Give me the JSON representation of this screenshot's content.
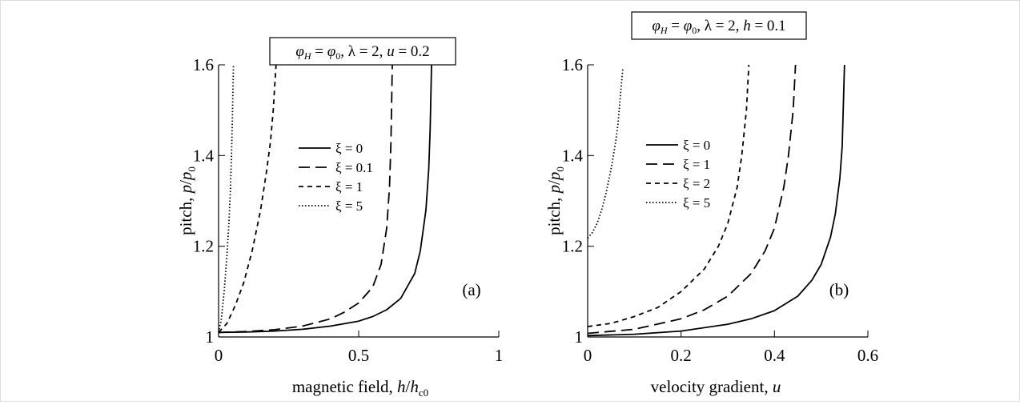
{
  "chart_data": [
    {
      "type": "line",
      "panel_label": "(a)",
      "title_parts": {
        "phi": "φ",
        "phi_sub_h": "H",
        "eq1": " = ",
        "phi0": "φ",
        "phi0_sub": "0",
        "rest1": ", λ = 2, ",
        "var": "u",
        "rest2": " = 0.2"
      },
      "xlabel_parts": {
        "pre": "magnetic field, ",
        "var": "h",
        "slash": "/",
        "var2": "h",
        "sub": "c0"
      },
      "ylabel_parts": {
        "pre": "pitch, ",
        "var": "p",
        "slash": "/",
        "var2": "p",
        "sub": "0"
      },
      "xlim": [
        0,
        1
      ],
      "ylim": [
        1,
        1.6
      ],
      "xticks": [
        {
          "v": 0,
          "label": "0"
        },
        {
          "v": 0.5,
          "label": "0.5"
        },
        {
          "v": 1,
          "label": "1"
        }
      ],
      "yticks": [
        {
          "v": 1,
          "label": "1"
        },
        {
          "v": 1.2,
          "label": "1.2"
        },
        {
          "v": 1.4,
          "label": "1.4"
        },
        {
          "v": 1.6,
          "label": "1.6"
        }
      ],
      "legend_position": "center",
      "series": [
        {
          "name": "ξ = 0",
          "style": "solid",
          "x": [
            0,
            0.1,
            0.2,
            0.3,
            0.4,
            0.5,
            0.55,
            0.6,
            0.65,
            0.7,
            0.72,
            0.74,
            0.75,
            0.755,
            0.76
          ],
          "y": [
            1.01,
            1.011,
            1.013,
            1.017,
            1.024,
            1.035,
            1.045,
            1.06,
            1.085,
            1.14,
            1.19,
            1.28,
            1.37,
            1.46,
            1.6
          ]
        },
        {
          "name": "ξ = 0.1",
          "style": "dash",
          "x": [
            0,
            0.1,
            0.2,
            0.3,
            0.4,
            0.45,
            0.5,
            0.55,
            0.58,
            0.6,
            0.61,
            0.615,
            0.62
          ],
          "y": [
            1.01,
            1.012,
            1.016,
            1.024,
            1.04,
            1.055,
            1.075,
            1.11,
            1.16,
            1.24,
            1.33,
            1.43,
            1.6
          ]
        },
        {
          "name": "ξ = 1",
          "style": "shortdash",
          "x": [
            0,
            0.03,
            0.06,
            0.09,
            0.12,
            0.15,
            0.17,
            0.185,
            0.195,
            0.2,
            0.205
          ],
          "y": [
            1.01,
            1.03,
            1.07,
            1.12,
            1.19,
            1.28,
            1.36,
            1.43,
            1.5,
            1.55,
            1.6
          ]
        },
        {
          "name": "ξ = 5",
          "style": "dot",
          "x": [
            0,
            0.01,
            0.02,
            0.03,
            0.037,
            0.042,
            0.046,
            0.049,
            0.051,
            0.053
          ],
          "y": [
            1.01,
            1.04,
            1.1,
            1.18,
            1.25,
            1.32,
            1.4,
            1.47,
            1.54,
            1.6
          ]
        }
      ]
    },
    {
      "type": "line",
      "panel_label": "(b)",
      "title_parts": {
        "phi": "φ",
        "phi_sub_h": "H",
        "eq1": " = ",
        "phi0": "φ",
        "phi0_sub": "0",
        "rest1": ", λ = 2, ",
        "var": "h",
        "rest2": " = 0.1"
      },
      "xlabel_parts": {
        "pre": "velocity gradient, ",
        "var": "u",
        "slash": "",
        "var2": "",
        "sub": ""
      },
      "ylabel_parts": {
        "pre": "pitch, ",
        "var": "p",
        "slash": "/",
        "var2": "p",
        "sub": "0"
      },
      "xlim": [
        0,
        0.6
      ],
      "ylim": [
        1,
        1.6
      ],
      "xticks": [
        {
          "v": 0,
          "label": "0"
        },
        {
          "v": 0.2,
          "label": "0.2"
        },
        {
          "v": 0.4,
          "label": "0.4"
        },
        {
          "v": 0.6,
          "label": "0.6"
        }
      ],
      "yticks": [
        {
          "v": 1,
          "label": "1"
        },
        {
          "v": 1.2,
          "label": "1.2"
        },
        {
          "v": 1.4,
          "label": "1.4"
        },
        {
          "v": 1.6,
          "label": "1.6"
        }
      ],
      "legend_position": "center-left",
      "series": [
        {
          "name": "ξ = 0",
          "style": "solid",
          "x": [
            0,
            0.1,
            0.2,
            0.3,
            0.35,
            0.4,
            0.45,
            0.48,
            0.5,
            0.52,
            0.53,
            0.54,
            0.545,
            0.55
          ],
          "y": [
            1.003,
            1.006,
            1.013,
            1.028,
            1.04,
            1.058,
            1.09,
            1.125,
            1.16,
            1.22,
            1.27,
            1.35,
            1.42,
            1.6
          ]
        },
        {
          "name": "ξ = 1",
          "style": "dash",
          "x": [
            0,
            0.1,
            0.2,
            0.25,
            0.3,
            0.35,
            0.38,
            0.4,
            0.42,
            0.43,
            0.44,
            0.445
          ],
          "y": [
            1.008,
            1.017,
            1.04,
            1.06,
            1.09,
            1.14,
            1.19,
            1.24,
            1.33,
            1.4,
            1.5,
            1.6
          ]
        },
        {
          "name": "ξ = 2",
          "style": "shortdash",
          "x": [
            0,
            0.05,
            0.1,
            0.15,
            0.2,
            0.25,
            0.28,
            0.3,
            0.32,
            0.33,
            0.34,
            0.345
          ],
          "y": [
            1.023,
            1.03,
            1.045,
            1.065,
            1.1,
            1.15,
            1.2,
            1.25,
            1.33,
            1.4,
            1.5,
            1.6
          ]
        },
        {
          "name": "ξ = 5",
          "style": "dot",
          "x": [
            0,
            0.01,
            0.02,
            0.03,
            0.04,
            0.05,
            0.06,
            0.065,
            0.07,
            0.075
          ],
          "y": [
            1.218,
            1.23,
            1.25,
            1.28,
            1.32,
            1.37,
            1.43,
            1.47,
            1.53,
            1.59
          ]
        }
      ]
    }
  ]
}
